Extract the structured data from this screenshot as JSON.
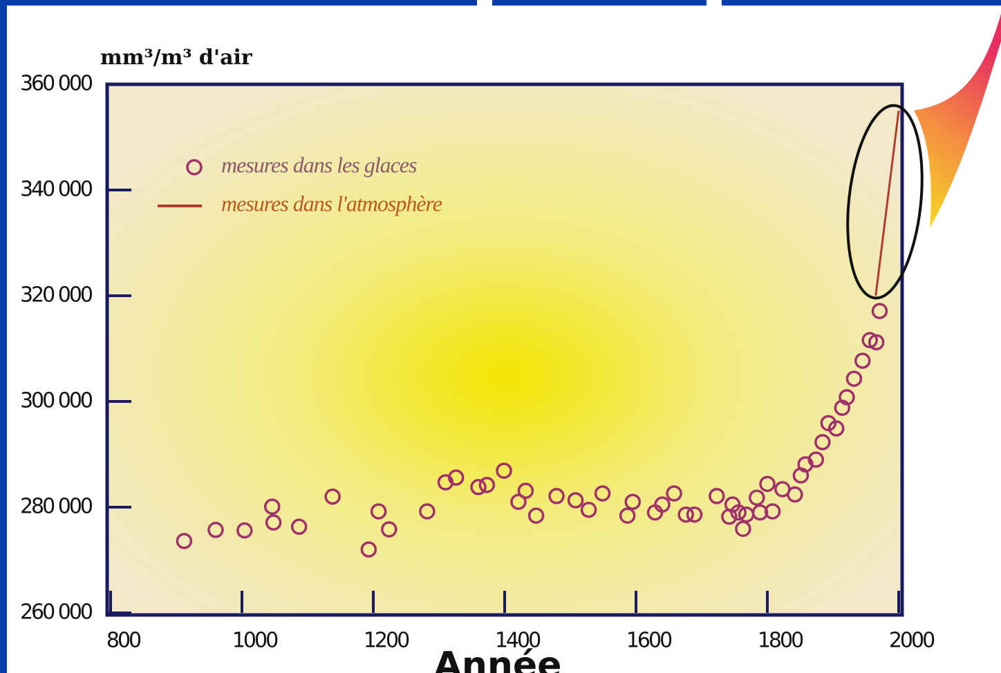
{
  "chart_data": {
    "type": "scatter",
    "y_label": "mm³/m³ d'air",
    "x_label": "Année",
    "xlim": [
      800,
      2000
    ],
    "ylim": [
      260000,
      360000
    ],
    "xticks": [
      800,
      1000,
      1200,
      1400,
      1600,
      1800,
      2000
    ],
    "yticks": [
      {
        "value": 260000,
        "label": "260 000"
      },
      {
        "value": 280000,
        "label": "280 000"
      },
      {
        "value": 300000,
        "label": "300 000"
      },
      {
        "value": 320000,
        "label": "320 000"
      },
      {
        "value": 340000,
        "label": "340 000"
      },
      {
        "value": 360000,
        "label": "360 000"
      }
    ],
    "series": [
      {
        "name": "mesures dans les glaces",
        "type": "scatter",
        "color": "#a0306a",
        "x": [
          912,
          960,
          1004,
          1046,
          1048,
          1087,
          1138,
          1193,
          1208,
          1224,
          1282,
          1310,
          1326,
          1360,
          1373,
          1399,
          1421,
          1432,
          1448,
          1479,
          1508,
          1528,
          1549,
          1587,
          1595,
          1629,
          1640,
          1658,
          1676,
          1689,
          1723,
          1742,
          1747,
          1756,
          1763,
          1768,
          1784,
          1789,
          1800,
          1808,
          1823,
          1842,
          1851,
          1858,
          1874,
          1884,
          1893,
          1905,
          1914,
          1921,
          1932,
          1945,
          1956,
          1966,
          1971
        ],
        "values": [
          273600,
          275700,
          275600,
          280100,
          277100,
          276300,
          282000,
          272000,
          279200,
          275800,
          279200,
          284700,
          285600,
          283800,
          284200,
          286900,
          281000,
          283100,
          278400,
          282100,
          281300,
          279500,
          282600,
          278400,
          281000,
          279000,
          280500,
          282600,
          278600,
          278600,
          282100,
          278200,
          280500,
          279000,
          275900,
          278600,
          281800,
          279000,
          284400,
          279200,
          283400,
          282400,
          286000,
          288100,
          289000,
          292300,
          295900,
          294900,
          298800,
          300800,
          304300,
          307700,
          311600,
          311200,
          317100
        ]
      },
      {
        "name": "mesures dans l'atmosphère",
        "type": "line",
        "color": "#b03a30",
        "x": [
          1965,
          2000
        ],
        "values": [
          320000,
          355000
        ]
      }
    ]
  }
}
